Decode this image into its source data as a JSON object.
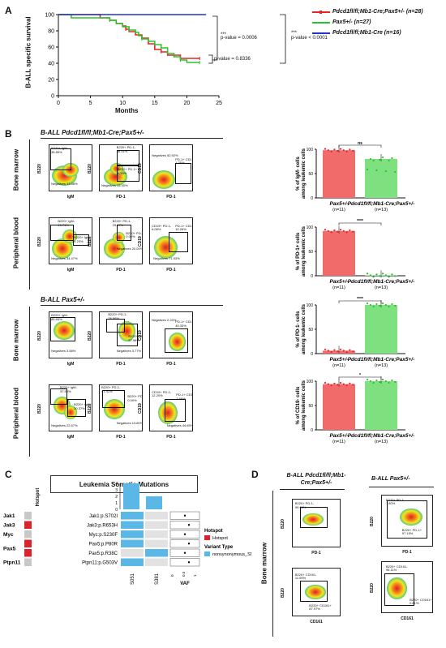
{
  "panelA": {
    "label": "A",
    "ylabel": "B-ALL specific survival",
    "xlabel": "Months",
    "xticks": [
      "0",
      "5",
      "10",
      "15",
      "20",
      "25"
    ],
    "yticks": [
      "0",
      "20",
      "40",
      "60",
      "80",
      "100"
    ],
    "legend": [
      {
        "name": "Pdcd1fl/fl;Mb1-Cre;Pax5+/- (n=28)",
        "color": "#e8232a"
      },
      {
        "name": "Pax5+/- (n=27)",
        "color": "#2bc32b"
      },
      {
        "name": "Pdcd1fl/fl;Mb1-Cre (n=16)",
        "color": "#2233cc"
      }
    ],
    "stats": {
      "s1": "***",
      "p1": "p-value = 0.0006",
      "s2": "***",
      "p2": "p-value < 0.0001",
      "p3": "p-value = 0.8336"
    }
  },
  "chart_data": {
    "type": "line",
    "xlabel": "Months",
    "ylabel": "B-ALL specific survival",
    "xlim": [
      0,
      25
    ],
    "ylim": [
      0,
      100
    ],
    "series": [
      {
        "name": "Pdcd1fl/fl;Mb1-Cre;Pax5+/- (n=28)",
        "color": "#e8232a",
        "x": [
          0,
          5,
          6.5,
          8,
          9,
          10,
          10.5,
          11,
          12,
          13,
          14,
          15,
          16,
          17,
          18,
          19,
          20,
          21,
          22
        ],
        "y": [
          100,
          100,
          96,
          93,
          89,
          86,
          82,
          79,
          75,
          71,
          64,
          57,
          54,
          50,
          50,
          46,
          46,
          46,
          46
        ]
      },
      {
        "name": "Pax5+/- (n=27)",
        "color": "#2bc32b",
        "x": [
          0,
          2,
          4,
          8,
          9,
          10,
          11,
          12,
          12.5,
          13,
          14,
          15,
          16,
          17,
          18,
          19,
          20,
          21,
          22
        ],
        "y": [
          100,
          96,
          96,
          93,
          89,
          85,
          81,
          78,
          74,
          70,
          67,
          63,
          59,
          52,
          48,
          44,
          41,
          41,
          41
        ]
      },
      {
        "name": "Pdcd1fl/fl;Mb1-Cre (n=16)",
        "color": "#2233cc",
        "x": [
          0,
          23
        ],
        "y": [
          100,
          100
        ]
      }
    ]
  },
  "panelB": {
    "label": "B",
    "title1": "B-ALL Pdcd1fl/fl;Mb1-Cre;Pax5+/-",
    "title2": "B-ALL Pax5+/-",
    "rows": [
      "Bone marrow",
      "Peripheral blood",
      "Bone marrow",
      "Peripheral blood"
    ],
    "gates": [
      [
        "B220+ IgM- 35.89%",
        "Negatives 13.38%",
        "B220+ PD-1- 86.51%",
        "B220+ PD-1+ 0.18%",
        "Negatives 13.30%",
        "Negatives 52.92%",
        "PD-1+ CD19- 1.35%"
      ],
      [
        "B220+ IgM- 19.71%",
        "B220+ IgM+ 1.23%",
        "Negatives 34.47%",
        "B220+ PD-1- 29.97%",
        "B220+ PD-1+ 0.00%",
        "Negatives 20.00%",
        "CD19+ PD-1- 6.08%",
        "PD-1+ CD19- 10.26%",
        "Negatives 71.93%"
      ],
      [
        "B220+ IgM- 85.65%",
        "Negatives 3.58%",
        "B220+ PD-1- 26.86%",
        "B220+ PD-1+ 67.98%",
        "Negatives 3.77%",
        "Negatives 2.24%",
        "PD-1+ CD19- 49.33%"
      ],
      [
        "B220+ IgM- 37.59%",
        "B220+ IgM+ 20.37%",
        "Negatives 22.57%",
        "B220+ PD-1- 41.41%",
        "B220+ PD-1+ 0.00%",
        "Negatives 13.80%",
        "CD19+ PD-1- 12.20%",
        "PD-1+ CD19- 7.66%",
        "Negatives 44.65%"
      ]
    ],
    "axes": {
      "igm": "IgM",
      "pd1": "PD-1",
      "b220": "B220",
      "cd19": "CD19"
    },
    "bars": [
      {
        "ylabel": "% of IgM- cells among leukemic cells",
        "sig": "ns",
        "vals": [
          98,
          80
        ]
      },
      {
        "ylabel": "% of PD-1+ cells among leukemic cells",
        "sig": "****",
        "vals": [
          92,
          1
        ]
      },
      {
        "ylabel": "% of PD-1- cells among leukemic cells",
        "sig": "****",
        "vals": [
          6,
          100
        ]
      },
      {
        "ylabel": "% of CD19- cells among leukemic cells",
        "sig": "*",
        "vals": [
          94,
          100
        ]
      }
    ],
    "bar_groups": [
      {
        "name": "Pax5+/-",
        "n": "(n=11)"
      },
      {
        "name": "Pdcd1fl/fl;Mb1-Cre;Pax5+/-",
        "n": "(n=13)"
      }
    ],
    "bar_yticks": [
      "0",
      "50",
      "100"
    ]
  },
  "panelC": {
    "label": "C",
    "title": "Leukemia Somatic Mutations",
    "hotspot_col": "Hotspot",
    "genes": [
      "Jak1",
      "Jak3",
      "Myc",
      "Pax5",
      "Ptpn11"
    ],
    "mutations": [
      "Jak1:p.S702I",
      "Jak3:p.R653H",
      "Myc:p.S230F",
      "Pax5:p.P80R",
      "Pax5:p.R38C",
      "Ptpn11:p.G503V"
    ],
    "samples": [
      "S051",
      "S381"
    ],
    "counts": [
      4,
      2
    ],
    "count_ticks": [
      "4",
      "3",
      "2",
      "1",
      "0"
    ],
    "vaf_label": "VAF",
    "vaf_ticks": [
      "0",
      "0.5",
      "1"
    ],
    "legend_hotspot_title": "Hotspot",
    "legend_hotspot": "Hotspot",
    "legend_variant_title": "Variant Type",
    "legend_variant": "nonsynonymous_SNV",
    "colors": {
      "hot": "#d9232d",
      "nohot": "#c8c8c8",
      "snv": "#5bb8e6",
      "empty": "#e2e2e2"
    }
  },
  "panelD": {
    "label": "D",
    "title1": "B-ALL Pdcd1fl/fl;Mb1-Cre;Pax5+/-",
    "title2": "B-ALL Pax5+/-",
    "side": "Bone marrow",
    "gates": [
      [
        "B220+ PD-1- 99.93%"
      ],
      [
        "B220+ PD-1- 1.80%",
        "B220+ PD-1+ 97.15%"
      ],
      [
        "B220+ CD161- 11.99%",
        "B220+ CD161+ 87.97%"
      ],
      [
        "B220+ CD161- 96.11%",
        "B220+ CD161+ 0.81%"
      ]
    ],
    "axes": {
      "b220": "B220",
      "pd1": "PD-1",
      "cd161": "CD161"
    }
  }
}
